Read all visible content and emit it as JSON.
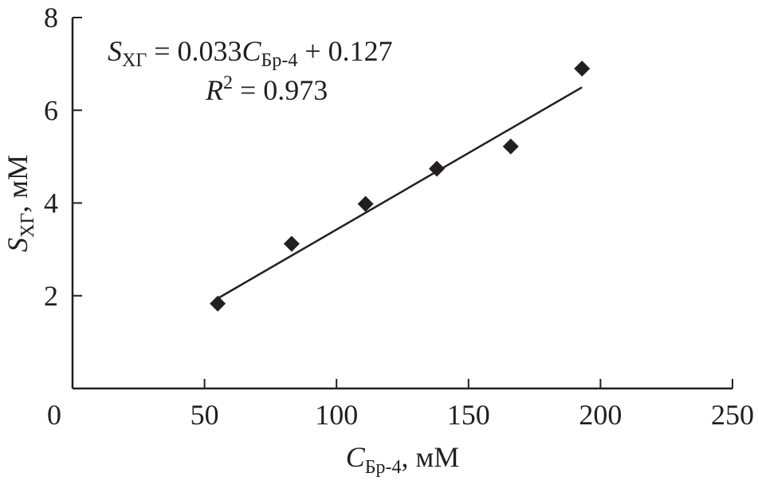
{
  "chart_data": {
    "type": "scatter",
    "title": "",
    "xlabel": {
      "main": "C",
      "sub": "Бр-4",
      "unit": ", мМ"
    },
    "ylabel": {
      "main": "S",
      "sub": "ХГ",
      "unit": ", мМ"
    },
    "xlim": [
      0,
      250
    ],
    "ylim": [
      0,
      8
    ],
    "xticks": [
      "0",
      "50",
      "100",
      "150",
      "200",
      "250"
    ],
    "yticks": [
      "2",
      "4",
      "6",
      "8"
    ],
    "grid": false,
    "marker": "diamond",
    "color": "#231f20",
    "points": [
      {
        "x": 55,
        "y": 1.83
      },
      {
        "x": 83,
        "y": 3.12
      },
      {
        "x": 111,
        "y": 3.98
      },
      {
        "x": 138,
        "y": 4.74
      },
      {
        "x": 166,
        "y": 5.22
      },
      {
        "x": 193,
        "y": 6.9
      }
    ],
    "fit": {
      "slope": 0.033,
      "intercept": 0.127,
      "x_range": [
        55,
        193
      ]
    },
    "annotation": {
      "line1_lhs": "S",
      "line1_lhs_sub": "ХГ",
      "line1_mid": " = 0.033",
      "line1_var": "C",
      "line1_var_sub": "Бр-4",
      "line1_rhs": " + 0.127",
      "line2_lhs": "R",
      "line2_sup": "2",
      "line2_rhs": " = 0.973"
    }
  }
}
